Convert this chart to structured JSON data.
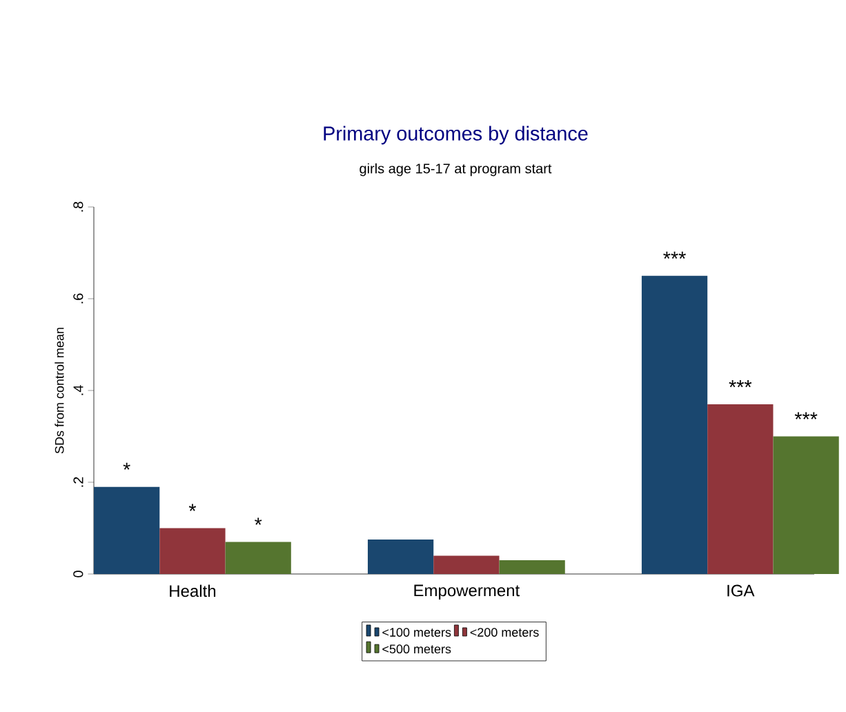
{
  "chart_data": {
    "type": "bar",
    "title": "Primary outcomes by distance",
    "subtitle": "girls age 15-17 at program start",
    "ylabel": "SDs from control mean",
    "categories": [
      "Health",
      "Empowerment",
      "IGA"
    ],
    "series": [
      {
        "name": "<100 meters",
        "color": "#1a476f",
        "values": [
          0.19,
          0.075,
          0.65
        ],
        "value_labels": [
          "*",
          null,
          "***"
        ]
      },
      {
        "name": "<200 meters",
        "color": "#90353b",
        "values": [
          0.1,
          0.04,
          0.37
        ],
        "value_labels": [
          "*",
          null,
          "***"
        ]
      },
      {
        "name": "<500 meters",
        "color": "#55752f",
        "values": [
          0.07,
          0.03,
          0.3
        ],
        "value_labels": [
          "*",
          null,
          "***"
        ]
      }
    ],
    "ylim": [
      0,
      0.8
    ],
    "yticks": [
      0,
      {
        "value": 0.2,
        "label": ".2"
      },
      {
        "value": 0.4,
        "label": ".4"
      },
      {
        "value": 0.6,
        "label": ".6"
      },
      {
        "value": 0.8,
        "label": ".8"
      }
    ],
    "grid": false,
    "legend": "bottom"
  }
}
